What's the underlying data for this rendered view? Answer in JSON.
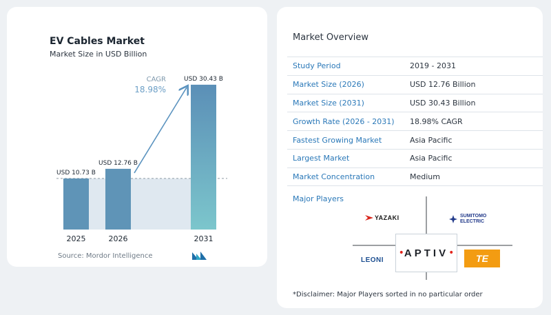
{
  "chart_data": {
    "type": "bar",
    "title": "EV Cables Market",
    "subtitle": "Market Size in USD Billion",
    "categories": [
      "2025",
      "2026",
      "2031"
    ],
    "values": [
      10.73,
      12.76,
      30.43
    ],
    "data_labels": [
      "USD 10.73 B",
      "USD 12.76 B",
      "USD 30.43 B"
    ],
    "cagr_label": "CAGR",
    "cagr_value": "18.98%",
    "ylim": [
      0,
      32
    ],
    "grid": false,
    "colors": {
      "bar_2025": "#5f94b7",
      "bar_top": "#5b8fb7",
      "bar_bottom": "#7cc6cc",
      "arrow": "#5b93bf",
      "shade": "#dfe8f0",
      "cagr": "#6c9fc6"
    }
  },
  "source": "Source:  Mordor Intelligence",
  "brand_icon": "mordor-intelligence-logo",
  "market_overview": {
    "title": "Market Overview",
    "rows": [
      {
        "label": "Study Period",
        "value": "2019 - 2031"
      },
      {
        "label": "Market Size (2026)",
        "value": "USD 12.76 Billion"
      },
      {
        "label": "Market Size (2031)",
        "value": "USD 30.43 Billion"
      },
      {
        "label": "Growth Rate (2026 - 2031)",
        "value": "18.98% CAGR"
      },
      {
        "label": "Fastest Growing Market",
        "value": "Asia Pacific"
      },
      {
        "label": "Largest Market",
        "value": "Asia Pacific"
      },
      {
        "label": "Market Concentration",
        "value": "Medium"
      }
    ]
  },
  "major_players": {
    "title": "Major Players",
    "yazaki": "YAZAKI",
    "sumitomo_line1": "SUMITOMO",
    "sumitomo_line2": "ELECTRIC",
    "leoni": "LEONI",
    "aptiv": "APTIV",
    "te": "TE"
  },
  "disclaimer": "*Disclaimer: Major Players sorted in no particular order"
}
